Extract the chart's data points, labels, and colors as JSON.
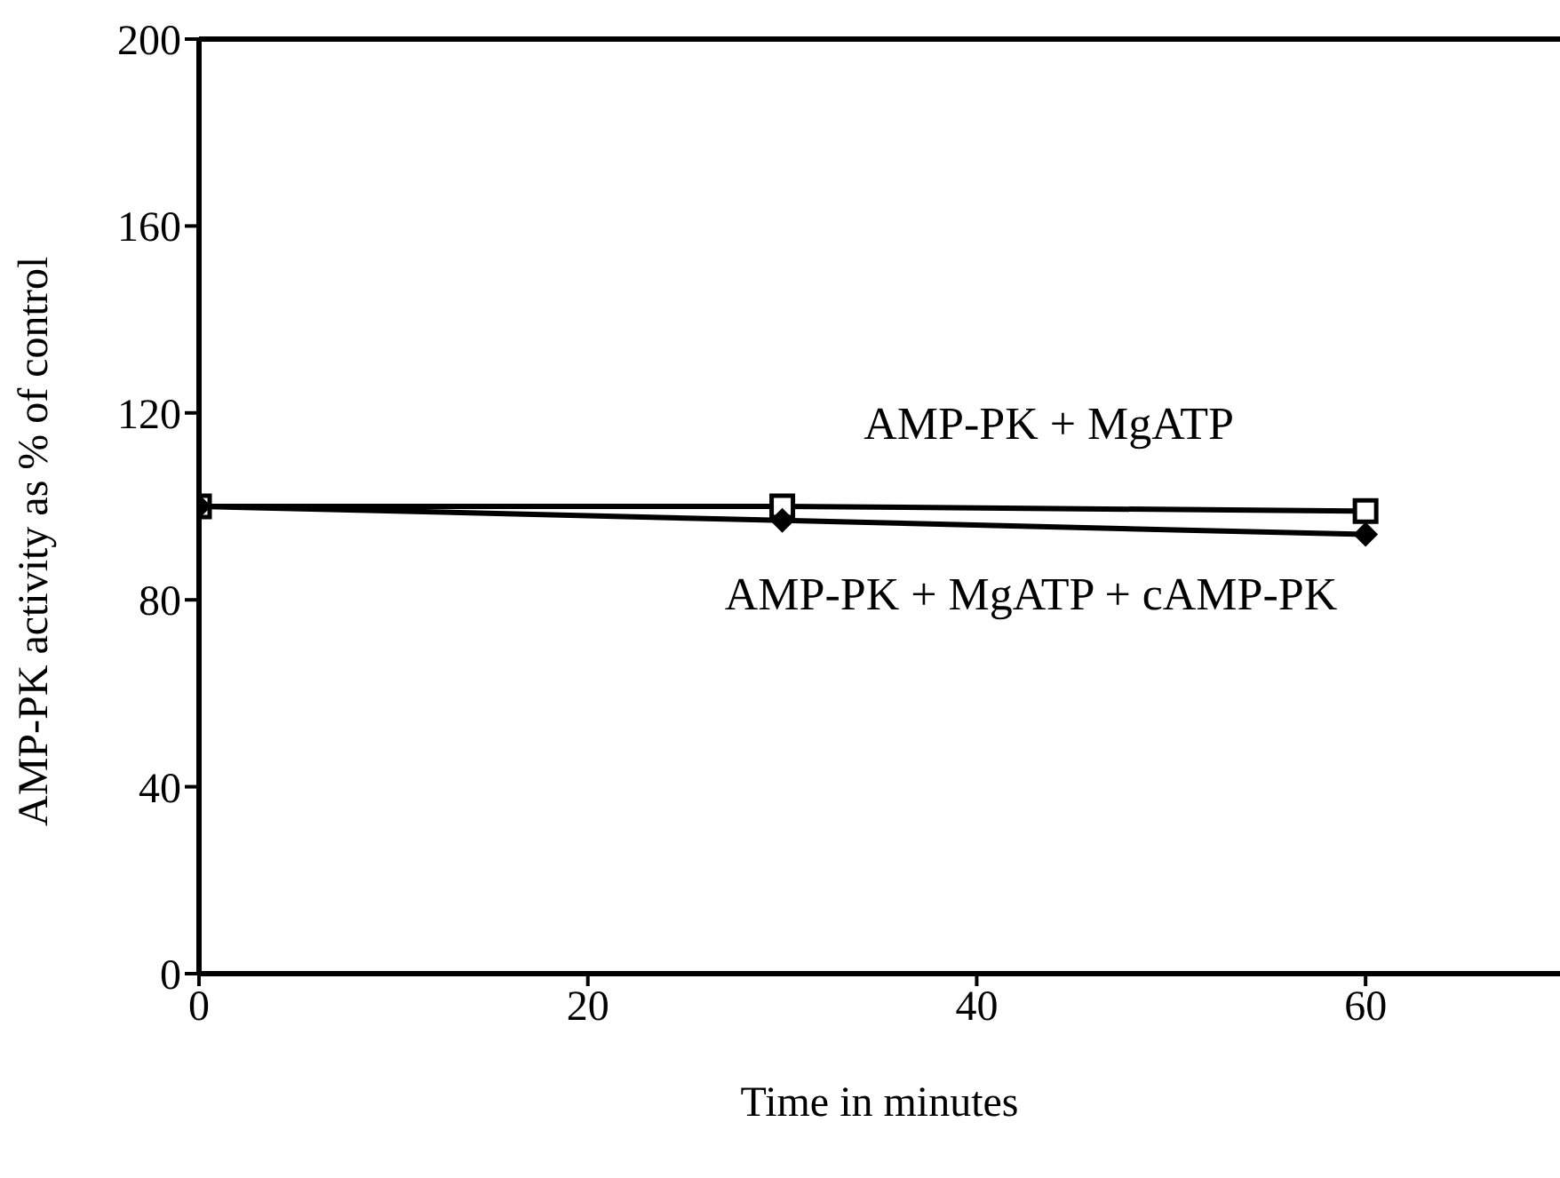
{
  "chart_data": {
    "type": "line",
    "xlabel": "Time in minutes",
    "ylabel": "AMP-PK activity as % of control",
    "x": [
      0,
      30,
      60
    ],
    "series": [
      {
        "name": "AMP-PK + MgATP",
        "color": "#000000",
        "values": [
          100,
          100,
          99
        ],
        "marker": "square"
      },
      {
        "name": "AMP-PK + MgATP + cAMP-PK",
        "color": "#000000",
        "values": [
          100,
          97,
          94
        ],
        "marker": "diamond"
      }
    ],
    "xlim": [
      0,
      70
    ],
    "xticks": [
      0,
      20,
      40,
      60
    ],
    "ylim": [
      0,
      200
    ],
    "yticks": [
      0,
      40,
      80,
      120,
      160,
      200
    ],
    "grid": false
  }
}
